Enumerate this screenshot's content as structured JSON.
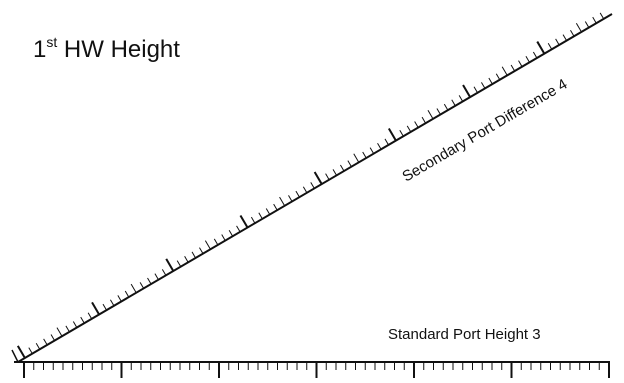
{
  "title": {
    "prefix": "1",
    "superscript": "st",
    "suffix": " HW Height"
  },
  "secondary_scale": {
    "label": "Secondary Port Difference 4"
  },
  "standard_scale": {
    "label": "Standard Port Height 3"
  },
  "colors": {
    "line": "#111111",
    "background": "#ffffff"
  }
}
